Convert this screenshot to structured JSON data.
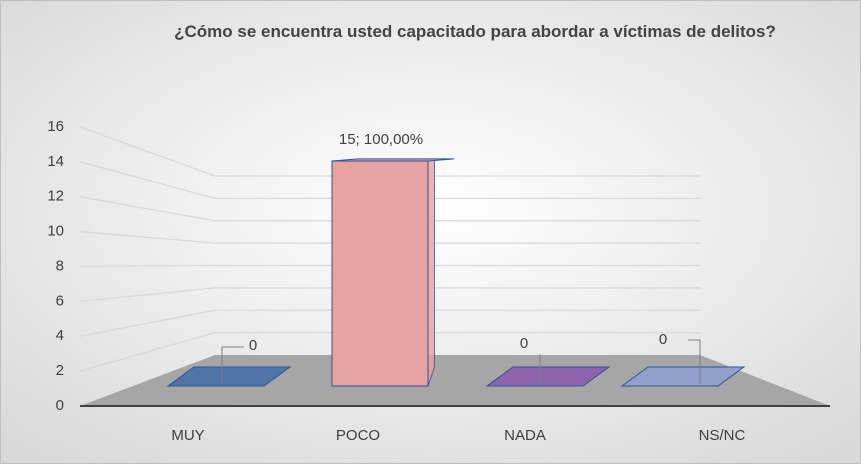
{
  "chart_data": {
    "type": "bar3d",
    "title": "¿Cómo se encuentra usted capacitado para abordar a víctimas de delitos?",
    "categories": [
      "MUY",
      "POCO",
      "NADA",
      "NS/NC"
    ],
    "values": [
      0,
      15,
      0,
      0
    ],
    "value_labels": [
      "0",
      "15; 100,00%",
      "0",
      "0"
    ],
    "colors": [
      "#4f75a8",
      "#e6a3a2",
      "#8e63ad",
      "#909fcc"
    ],
    "ylim": [
      0,
      16
    ],
    "yticks": [
      0,
      2,
      4,
      6,
      8,
      10,
      12,
      14,
      16
    ],
    "grid": true
  }
}
